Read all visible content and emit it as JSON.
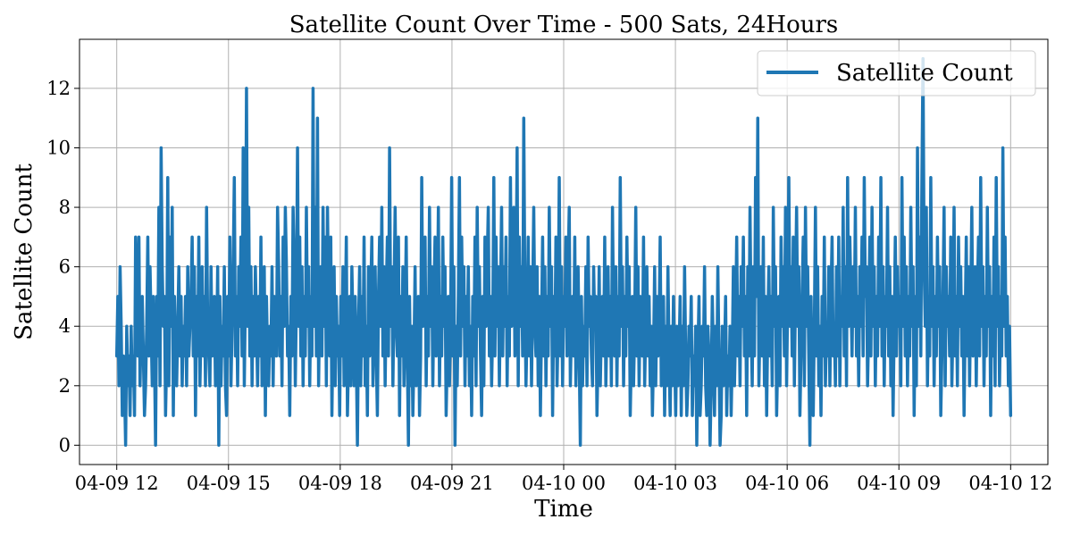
{
  "chart_data": {
    "type": "line",
    "title": "Satellite Count Over Time - 500 Sats, 24Hours",
    "xlabel": "Time",
    "ylabel": "Satellite Count",
    "x_range": [
      "04-09 11:00",
      "04-10 13:00"
    ],
    "ylim": [
      -0.65,
      13.65
    ],
    "x_ticks": [
      "04-09 12",
      "04-09 15",
      "04-09 18",
      "04-09 21",
      "04-10 00",
      "04-10 03",
      "04-10 06",
      "04-10 09",
      "04-10 12"
    ],
    "y_ticks": [
      0,
      2,
      4,
      6,
      8,
      10,
      12
    ],
    "grid": true,
    "legend": {
      "placement": "top-right",
      "entries": [
        "Satellite Count"
      ]
    },
    "series": [
      {
        "name": "Satellite Count",
        "color": "#1f77b4",
        "time_range": [
          "04-09 12:00",
          "04-10 12:00"
        ],
        "sample_interval": "1 minute",
        "values": [
          3,
          5,
          2,
          6,
          4,
          1,
          3,
          2,
          0,
          4,
          2,
          3,
          1,
          4,
          2,
          3,
          1,
          7,
          5,
          3,
          7,
          2,
          4,
          5,
          3,
          1,
          2,
          4,
          7,
          3,
          6,
          4,
          2,
          5,
          3,
          0,
          5,
          3,
          8,
          2,
          10,
          6,
          4,
          5,
          1,
          3,
          9,
          2,
          7,
          4,
          8,
          1,
          5,
          3,
          2,
          4,
          6,
          3,
          5,
          2,
          4,
          3,
          5,
          2,
          6,
          3,
          4,
          5,
          7,
          3,
          6,
          1,
          5,
          3,
          7,
          2,
          4,
          6,
          3,
          5,
          2,
          8,
          4,
          3,
          2,
          6,
          3,
          4,
          5,
          2,
          3,
          6,
          0,
          5,
          2,
          4,
          3,
          6,
          2,
          1,
          5,
          3,
          7,
          2,
          4,
          6,
          9,
          3,
          5,
          2,
          6,
          4,
          7,
          3,
          10,
          2,
          5,
          12,
          4,
          8,
          3,
          6,
          2,
          5,
          3,
          6,
          4,
          2,
          5,
          3,
          7,
          2,
          4,
          6,
          1,
          5,
          3,
          2,
          4,
          3,
          6,
          2,
          5,
          4,
          3,
          8,
          6,
          3,
          5,
          2,
          7,
          4,
          8,
          6,
          3,
          4,
          1,
          5,
          3,
          8,
          6,
          2,
          5,
          10,
          4,
          7,
          3,
          6,
          2,
          5,
          3,
          8,
          4,
          6,
          2,
          5,
          3,
          12,
          4,
          8,
          3,
          11,
          2,
          5,
          6,
          3,
          8,
          4,
          7,
          2,
          8,
          5,
          3,
          7,
          1,
          4,
          6,
          2,
          5,
          3,
          4,
          1,
          5,
          3,
          6,
          2,
          4,
          7,
          1,
          3,
          5,
          2,
          6,
          4,
          2,
          5,
          3,
          0,
          4,
          6,
          2,
          5,
          3,
          7,
          2,
          4,
          1,
          6,
          3,
          5,
          7,
          2,
          4,
          6,
          3,
          1,
          5,
          7,
          4,
          8,
          3,
          6,
          2,
          5,
          7,
          3,
          10,
          4,
          6,
          2,
          5,
          8,
          4,
          3,
          7,
          1,
          5,
          3,
          6,
          2,
          4,
          7,
          3,
          0,
          5,
          2,
          4,
          1,
          3,
          6,
          2,
          4,
          5,
          1,
          3,
          9,
          4,
          6,
          7,
          2,
          5,
          3,
          8,
          4,
          6,
          2,
          5,
          7,
          3,
          4,
          8,
          2,
          5,
          3,
          7,
          4,
          6,
          1,
          3,
          5,
          2,
          4,
          9,
          3,
          6,
          0,
          4,
          2,
          5,
          9,
          3,
          7,
          4,
          6,
          2,
          5,
          3,
          6,
          2,
          4,
          1,
          5,
          3,
          7,
          2,
          8,
          4,
          6,
          3,
          1,
          5,
          2,
          7,
          4,
          6,
          8,
          3,
          5,
          2,
          4,
          9,
          3,
          7,
          4,
          6,
          2,
          5,
          8,
          3,
          6,
          4,
          7,
          2,
          5,
          3,
          9,
          4,
          6,
          8,
          3,
          5,
          10,
          2,
          7,
          4,
          6,
          3,
          11,
          5,
          2,
          4,
          7,
          3,
          6,
          2,
          5,
          8,
          4,
          3,
          6,
          2,
          5,
          1,
          4,
          7,
          3,
          6,
          2,
          5,
          3,
          8,
          4,
          6,
          1,
          5,
          3,
          7,
          2,
          4,
          9,
          3,
          6,
          2,
          5,
          4,
          7,
          3,
          6,
          8,
          2,
          4,
          5,
          3,
          7,
          2,
          4,
          6,
          3,
          0,
          5,
          2,
          4,
          3,
          6,
          2,
          7,
          4,
          5,
          3,
          2,
          6,
          4,
          5,
          1,
          3,
          6,
          2,
          4,
          5,
          3,
          7,
          2,
          4,
          6,
          3,
          5,
          2,
          8,
          4,
          3,
          6,
          2,
          5,
          3,
          9,
          4,
          6,
          2,
          5,
          3,
          7,
          4,
          6,
          1,
          3,
          5,
          2,
          4,
          8,
          3,
          6,
          2,
          5,
          4,
          3,
          7,
          2,
          4,
          6,
          3,
          5,
          2,
          4,
          1,
          3,
          6,
          2,
          5,
          3,
          4,
          7,
          2,
          3,
          5,
          1,
          4,
          2,
          6,
          3,
          1,
          4,
          2,
          5,
          3,
          1,
          4,
          2,
          3,
          5,
          1,
          4,
          2,
          6,
          3,
          1,
          2,
          4,
          3,
          5,
          1,
          3,
          2,
          4,
          0,
          3,
          5,
          1,
          2,
          4,
          3,
          6,
          2,
          1,
          4,
          3,
          0,
          2,
          5,
          3,
          1,
          4,
          2,
          6,
          3,
          0,
          1,
          4,
          2,
          3,
          5,
          1,
          3,
          2,
          4,
          1,
          3,
          6,
          2,
          4,
          7,
          3,
          5,
          2,
          6,
          4,
          7,
          3,
          5,
          1,
          6,
          3,
          8,
          4,
          2,
          6,
          3,
          9,
          5,
          11,
          2,
          4,
          6,
          3,
          7,
          2,
          5,
          1,
          4,
          6,
          3,
          5,
          2,
          8,
          4,
          6,
          1,
          3,
          5,
          2,
          7,
          4,
          6,
          3,
          8,
          2,
          5,
          9,
          4,
          6,
          3,
          7,
          2,
          5,
          8,
          4,
          6,
          1,
          3,
          5,
          7,
          2,
          8,
          4,
          6,
          3,
          0,
          5,
          2,
          1,
          4,
          8,
          3,
          6,
          2,
          4,
          1,
          5,
          3,
          7,
          2,
          4,
          3,
          6,
          2,
          5,
          7,
          3,
          4,
          2,
          6,
          3,
          7,
          2,
          5,
          4,
          8,
          3,
          6,
          2,
          9,
          4,
          7,
          5,
          3,
          6,
          4,
          8,
          3,
          5,
          2,
          6,
          4,
          7,
          3,
          9,
          5,
          6,
          2,
          4,
          7,
          3,
          8,
          4,
          6,
          2,
          5,
          3,
          7,
          4,
          9,
          3,
          6,
          2,
          5,
          4,
          8,
          3,
          6,
          2,
          5,
          1,
          4,
          7,
          3,
          6,
          4,
          5,
          2,
          9,
          4,
          7,
          3,
          6,
          2,
          5,
          3,
          8,
          4,
          6,
          1,
          5,
          2,
          10,
          4,
          7,
          3,
          9,
          13,
          6,
          4,
          8,
          2,
          5,
          3,
          9,
          4,
          6,
          2,
          5,
          3,
          7,
          4,
          6,
          1,
          3,
          5,
          8,
          2,
          6,
          4,
          5,
          3,
          7,
          2,
          4,
          8,
          3,
          5,
          2,
          7,
          4,
          6,
          3,
          5,
          1,
          4,
          7,
          3,
          6,
          2,
          5,
          8,
          3,
          4,
          6,
          2,
          5,
          7,
          3,
          9,
          4,
          6,
          2,
          5,
          3,
          8,
          4,
          6,
          1,
          5,
          3,
          7,
          2,
          9,
          4,
          6,
          2,
          5,
          3,
          10,
          4,
          7,
          3,
          5,
          2,
          4,
          1
        ]
      }
    ]
  }
}
